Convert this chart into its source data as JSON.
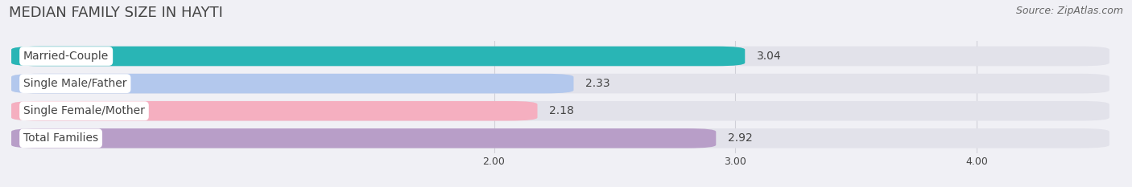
{
  "title": "MEDIAN FAMILY SIZE IN HAYTI",
  "source": "Source: ZipAtlas.com",
  "categories": [
    "Married-Couple",
    "Single Male/Father",
    "Single Female/Mother",
    "Total Families"
  ],
  "values": [
    3.04,
    2.33,
    2.18,
    2.92
  ],
  "bar_colors": [
    "#29b5b5",
    "#b3c8ed",
    "#f5afc0",
    "#b89ec8"
  ],
  "xlim_left": 0.0,
  "xlim_right": 4.55,
  "xstart": 0.0,
  "xticks": [
    2.0,
    3.0,
    4.0
  ],
  "xtick_labels": [
    "2.00",
    "3.00",
    "4.00"
  ],
  "bar_height": 0.72,
  "bar_gap": 0.28,
  "figsize": [
    14.06,
    2.33
  ],
  "dpi": 100,
  "title_fontsize": 13,
  "source_fontsize": 9,
  "label_fontsize": 10,
  "value_fontsize": 10,
  "tick_fontsize": 9,
  "background_color": "#f0f0f5",
  "bar_bg_color": "#e2e2ea",
  "label_box_color": "#ffffff",
  "text_color": "#444444",
  "source_color": "#666666",
  "grid_color": "#d0d0d8"
}
